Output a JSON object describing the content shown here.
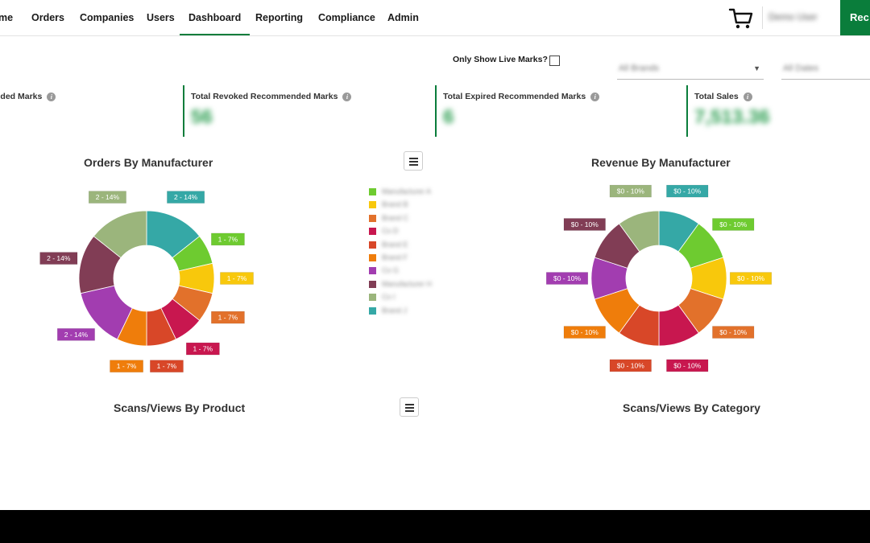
{
  "nav": {
    "items": [
      {
        "label": "me",
        "active": false
      },
      {
        "label": "Orders",
        "active": false
      },
      {
        "label": "Companies",
        "active": false
      },
      {
        "label": "Users",
        "active": false
      },
      {
        "label": "Dashboard",
        "active": true
      },
      {
        "label": "Reporting",
        "active": false
      },
      {
        "label": "Compliance",
        "active": false
      },
      {
        "label": "Admin",
        "active": false
      }
    ],
    "user_name": "Demo User",
    "action_label": "Rec"
  },
  "filters": {
    "live_marks_label": "Only Show Live Marks?",
    "select1_value": "All Brands",
    "select2_value": "All Dates"
  },
  "stats": [
    {
      "label": "nded Marks",
      "value": ""
    },
    {
      "label": "Total Revoked Recommended Marks",
      "value": "56"
    },
    {
      "label": "Total Expired Recommended Marks",
      "value": "6"
    },
    {
      "label": "Total Sales",
      "value": "7,513.36"
    }
  ],
  "charts": {
    "orders_title": "Orders By Manufacturer",
    "revenue_title": "Revenue By Manufacturer",
    "scans_product_title": "Scans/Views By Product",
    "scans_category_title": "Scans/Views By Category"
  },
  "colors": {
    "brand_green": "#0a7d3b",
    "stat_value": "#2a9d4f"
  },
  "chart_data": [
    {
      "type": "pie",
      "title": "Orders By Manufacturer",
      "donut": true,
      "slices": [
        {
          "label": "2 - 14%",
          "value": 14,
          "color": "#35a8a6"
        },
        {
          "label": "1 - 7%",
          "value": 7,
          "color": "#6ecb30"
        },
        {
          "label": "1 - 7%",
          "value": 7,
          "color": "#f8c80c"
        },
        {
          "label": "1 - 7%",
          "value": 7,
          "color": "#e2712b"
        },
        {
          "label": "1 - 7%",
          "value": 7,
          "color": "#c8174f"
        },
        {
          "label": "1 - 7%",
          "value": 7,
          "color": "#d84728"
        },
        {
          "label": "1 - 7%",
          "value": 7,
          "color": "#ef7d0b"
        },
        {
          "label": "2 - 14%",
          "value": 14,
          "color": "#a23db0"
        },
        {
          "label": "2 - 14%",
          "value": 14,
          "color": "#813d55"
        },
        {
          "label": "2 - 14%",
          "value": 14,
          "color": "#9bb57c"
        }
      ],
      "legend": [
        {
          "name": "Manufacturer A",
          "color": "#6ecb30"
        },
        {
          "name": "Brand B",
          "color": "#f8c80c"
        },
        {
          "name": "Brand C",
          "color": "#e2712b"
        },
        {
          "name": "Co D",
          "color": "#c8174f"
        },
        {
          "name": "Brand E",
          "color": "#d84728"
        },
        {
          "name": "Brand F",
          "color": "#ef7d0b"
        },
        {
          "name": "Co G",
          "color": "#a23db0"
        },
        {
          "name": "Manufacturer H",
          "color": "#813d55"
        },
        {
          "name": "Co I",
          "color": "#9bb57c"
        },
        {
          "name": "Brand J",
          "color": "#35a8a6"
        }
      ]
    },
    {
      "type": "pie",
      "title": "Revenue By Manufacturer",
      "donut": true,
      "slices": [
        {
          "label": "$0 - 10%",
          "value": 10,
          "color": "#35a8a6"
        },
        {
          "label": "$0 - 10%",
          "value": 10,
          "color": "#6ecb30"
        },
        {
          "label": "$0 - 10%",
          "value": 10,
          "color": "#f8c80c"
        },
        {
          "label": "$0 - 10%",
          "value": 10,
          "color": "#e2712b"
        },
        {
          "label": "$0 - 10%",
          "value": 10,
          "color": "#c8174f"
        },
        {
          "label": "$0 - 10%",
          "value": 10,
          "color": "#d84728"
        },
        {
          "label": "$0 - 10%",
          "value": 10,
          "color": "#ef7d0b"
        },
        {
          "label": "$0 - 10%",
          "value": 10,
          "color": "#a23db0"
        },
        {
          "label": "$0 - 10%",
          "value": 10,
          "color": "#813d55"
        },
        {
          "label": "$0 - 10%",
          "value": 10,
          "color": "#9bb57c"
        }
      ]
    }
  ]
}
